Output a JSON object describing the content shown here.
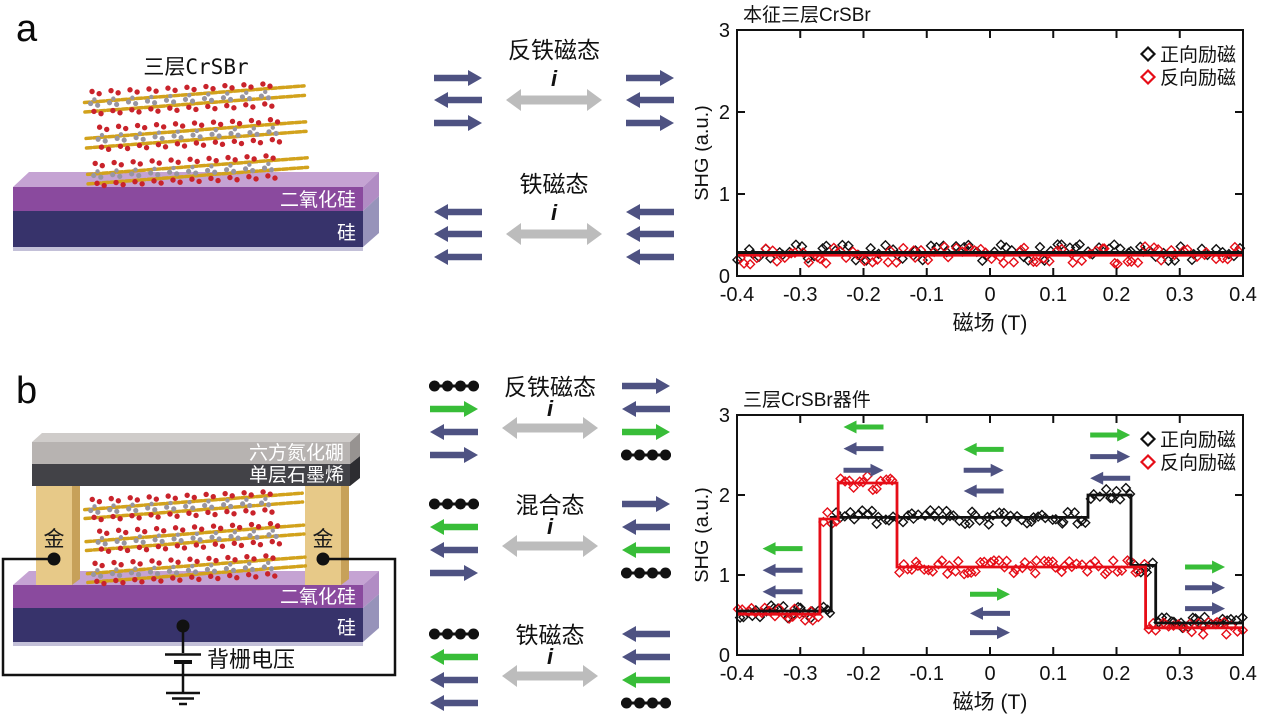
{
  "panels": {
    "a": {
      "label": "a",
      "device": {
        "sample_label": "三层CrSBr",
        "sio2_label": "二氧化硅",
        "si_label": "硅"
      },
      "states": [
        {
          "title": "反铁磁态",
          "axis_label": "i",
          "left": [
            "arrow:right:blue",
            "arrow:left:blue",
            "arrow:right:blue"
          ],
          "right": [
            "arrow:right:blue",
            "arrow:left:blue",
            "arrow:right:blue"
          ]
        },
        {
          "title": "铁磁态",
          "axis_label": "i",
          "left": [
            "arrow:left:blue",
            "arrow:left:blue",
            "arrow:left:blue"
          ],
          "right": [
            "arrow:left:blue",
            "arrow:left:blue",
            "arrow:left:blue"
          ]
        }
      ]
    },
    "b": {
      "label": "b",
      "device": {
        "hbn_label": "六方氮化硼",
        "graphene_label": "单层石墨烯",
        "gold_left_label": "金",
        "gold_right_label": "金",
        "sio2_label": "二氧化硅",
        "si_label": "硅",
        "gate_label": "背栅电压"
      },
      "states": [
        {
          "title": "反铁磁态",
          "axis_label": "i",
          "left": [
            "chain",
            "arrow:right:green",
            "arrow:left:blue",
            "arrow:right:blue"
          ],
          "right": [
            "arrow:right:blue",
            "arrow:left:blue",
            "arrow:right:green",
            "chain"
          ]
        },
        {
          "title": "混合态",
          "axis_label": "i",
          "left": [
            "chain",
            "arrow:left:green",
            "arrow:left:blue",
            "arrow:right:blue"
          ],
          "right": [
            "arrow:right:blue",
            "arrow:left:blue",
            "arrow:left:green",
            "chain"
          ]
        },
        {
          "title": "铁磁态",
          "axis_label": "i",
          "left": [
            "chain",
            "arrow:left:green",
            "arrow:left:blue",
            "arrow:left:blue"
          ],
          "right": [
            "arrow:left:blue",
            "arrow:left:blue",
            "arrow:left:green",
            "chain"
          ]
        }
      ]
    }
  },
  "colors": {
    "blue": "#4e5282",
    "green": "#38bd38",
    "gray_arrow": "#bcbcbc",
    "black": "#111111",
    "red": "#e60d17",
    "sio2_front": "#8a4a9e",
    "sio2_top": "#c5a3d3",
    "sio2_side": "#b18cc4",
    "si_front": "#37336b",
    "si_side": "#9793ba",
    "si_strip": "#c3c0d8",
    "gold": "#e7c988",
    "gold_side": "#c7a159",
    "hbn": "#b7b3b1",
    "hbn_side": "#979391",
    "hbn_top": "#cfccca",
    "graphene": "#424247",
    "graphene_side": "#2d2d31",
    "crystal_red": "#c9232b",
    "crystal_gray": "#9795a2",
    "crystal_yellow": "#d2a21c"
  },
  "chart_data": [
    {
      "id": "chart-a",
      "type": "scatter",
      "title": "本征三层CrSBr",
      "xlabel": "磁场 (T)",
      "ylabel": "SHG (a.u.)",
      "xlim": [
        -0.4,
        0.4
      ],
      "ylim": [
        0,
        3
      ],
      "xticks": [
        -0.4,
        -0.3,
        -0.2,
        -0.1,
        0,
        0.1,
        0.2,
        0.3,
        0.4
      ],
      "xtick_labels": [
        "-0.4",
        "-0.3",
        "-0.2",
        "-0.1",
        "0",
        "0.1",
        "0.2",
        "0.3",
        "0.4"
      ],
      "yticks": [
        0,
        1,
        2,
        3
      ],
      "ytick_labels": [
        "0",
        "1",
        "2",
        "3"
      ],
      "legend": [
        {
          "label": "正向励磁",
          "marker": "diamond",
          "color": "black"
        },
        {
          "label": "反向励磁",
          "marker": "diamond",
          "color": "red"
        }
      ],
      "lines": [
        {
          "name": "正向励磁基线",
          "color": "black",
          "width": 3.2,
          "points": [
            [
              -0.4,
              0.285
            ],
            [
              0.4,
              0.285
            ]
          ]
        },
        {
          "name": "反向励磁基线",
          "color": "red",
          "width": 2.6,
          "points": [
            [
              -0.4,
              0.252
            ],
            [
              0.4,
              0.252
            ]
          ]
        }
      ],
      "scatter": [
        {
          "name": "正向励磁",
          "color": "black",
          "follow": 0,
          "n": 80,
          "noise": 0.1,
          "seed": 7
        },
        {
          "name": "反向励磁",
          "color": "red",
          "follow": 1,
          "n": 80,
          "noise": 0.11,
          "seed": 13
        }
      ],
      "annotations": []
    },
    {
      "id": "chart-b",
      "type": "scatter",
      "title": "三层CrSBr器件",
      "xlabel": "磁场 (T)",
      "ylabel": "SHG (a.u.)",
      "xlim": [
        -0.4,
        0.4
      ],
      "ylim": [
        0,
        3
      ],
      "xticks": [
        -0.4,
        -0.3,
        -0.2,
        -0.1,
        0,
        0.1,
        0.2,
        0.3,
        0.4
      ],
      "xtick_labels": [
        "-0.4",
        "-0.3",
        "-0.2",
        "-0.1",
        "0",
        "0.1",
        "0.2",
        "0.3",
        "0.4"
      ],
      "yticks": [
        0,
        1,
        2,
        3
      ],
      "ytick_labels": [
        "0",
        "1",
        "2",
        "3"
      ],
      "legend": [
        {
          "label": "正向励磁",
          "marker": "diamond",
          "color": "black"
        },
        {
          "label": "反向励磁",
          "marker": "diamond",
          "color": "red"
        }
      ],
      "lines": [
        {
          "name": "正向励磁扫描",
          "color": "black",
          "width": 2.8,
          "points": [
            [
              -0.4,
              0.55
            ],
            [
              -0.251,
              0.55
            ],
            [
              -0.251,
              1.72
            ],
            [
              0.155,
              1.72
            ],
            [
              0.155,
              2.0
            ],
            [
              0.223,
              2.0
            ],
            [
              0.223,
              1.12
            ],
            [
              0.262,
              1.12
            ],
            [
              0.262,
              0.4
            ],
            [
              0.4,
              0.4
            ]
          ]
        },
        {
          "name": "反向励磁扫描",
          "color": "red",
          "width": 2.8,
          "points": [
            [
              -0.4,
              0.51
            ],
            [
              -0.269,
              0.51
            ],
            [
              -0.269,
              1.7
            ],
            [
              -0.24,
              1.7
            ],
            [
              -0.24,
              2.15
            ],
            [
              -0.147,
              2.15
            ],
            [
              -0.147,
              1.1
            ],
            [
              0.246,
              1.1
            ],
            [
              0.246,
              0.34
            ],
            [
              0.4,
              0.34
            ]
          ]
        }
      ],
      "scatter": [
        {
          "name": "正向励磁",
          "color": "black",
          "follow": 0,
          "n": 115,
          "noise": 0.09,
          "seed": 3
        },
        {
          "name": "反向励磁",
          "color": "red",
          "follow": 1,
          "n": 115,
          "noise": 0.09,
          "seed": 9
        }
      ],
      "annotations": [
        {
          "x": -0.2,
          "y": 2.85,
          "dy": 0.27,
          "arrows": [
            "left:green",
            "left:blue",
            "right:blue"
          ]
        },
        {
          "x": -0.01,
          "y": 2.57,
          "dy": 0.26,
          "arrows": [
            "left:green",
            "right:blue",
            "left:blue"
          ]
        },
        {
          "x": 0.19,
          "y": 2.75,
          "dy": 0.27,
          "arrows": [
            "right:green",
            "right:blue",
            "left:blue"
          ]
        },
        {
          "x": -0.328,
          "y": 1.33,
          "dy": 0.27,
          "arrows": [
            "left:green",
            "left:blue",
            "left:blue"
          ]
        },
        {
          "x": 0.0,
          "y": 0.76,
          "dy": 0.24,
          "arrows": [
            "right:green",
            "left:blue",
            "right:blue"
          ]
        },
        {
          "x": 0.34,
          "y": 1.1,
          "dy": 0.26,
          "arrows": [
            "right:green",
            "right:blue",
            "right:blue"
          ]
        }
      ]
    }
  ]
}
